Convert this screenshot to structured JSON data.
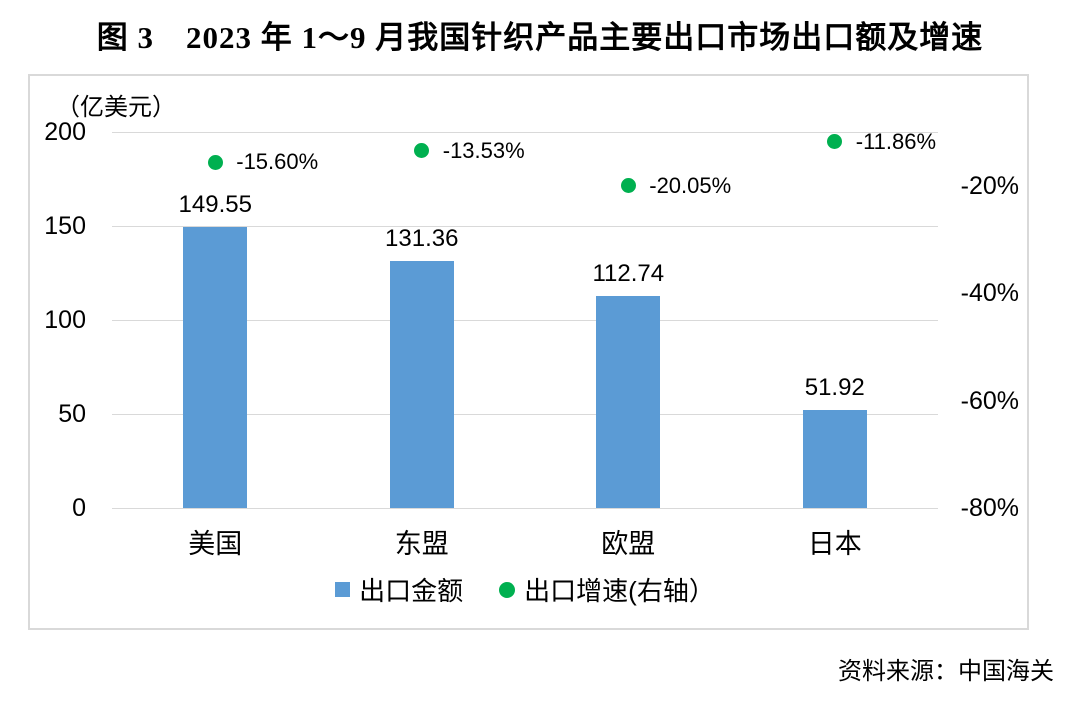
{
  "title": "图 3　2023 年 1～9 月我国针织产品主要出口市场出口额及增速",
  "source_note": "资料来源：中国海关",
  "chart_data": {
    "type": "bar",
    "subtype": "bar-and-scatter-combo",
    "title": "图 3　2023 年 1～9 月我国针织产品主要出口市场出口额及增速",
    "categories": [
      "美国",
      "东盟",
      "欧盟",
      "日本"
    ],
    "series": [
      {
        "name": "出口金额",
        "type": "bar",
        "axis": "left",
        "color": "#5b9bd5",
        "values": [
          149.55,
          131.36,
          112.74,
          51.92
        ],
        "labels": [
          "149.55",
          "131.36",
          "112.74",
          "51.92"
        ]
      },
      {
        "name": "出口增速(右轴）",
        "type": "scatter",
        "axis": "right",
        "color": "#00b050",
        "values": [
          -15.6,
          -13.53,
          -20.05,
          -11.86
        ],
        "labels": [
          "-15.60%",
          "-13.53%",
          "-20.05%",
          "-11.86%"
        ]
      }
    ],
    "left_axis": {
      "unit_label": "（亿美元）",
      "tick_labels": [
        "200",
        "150",
        "100",
        "50",
        "0"
      ],
      "tick_values": [
        200,
        150,
        100,
        50,
        0
      ],
      "min": 0,
      "max": 200
    },
    "right_axis": {
      "tick_labels": [
        "-20%",
        "-40%",
        "-60%",
        "-80%"
      ],
      "tick_values": [
        -20,
        -40,
        -60,
        -80
      ],
      "min": -80,
      "max": -10
    },
    "grid": true,
    "legend_position": "bottom",
    "gridline_color": "#d9d9d9",
    "border_color": "#d9d9d9",
    "background": "#ffffff"
  }
}
